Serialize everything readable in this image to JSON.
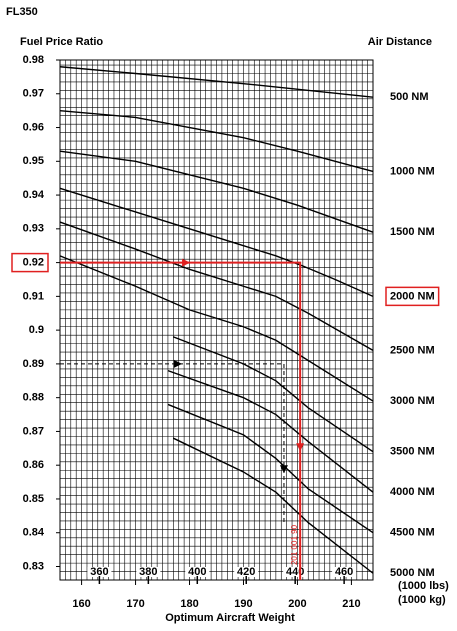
{
  "chart_data": {
    "type": "line",
    "title": "FL350",
    "y_label": "Fuel Price Ratio",
    "series_label": "Air Distance",
    "x_label": "Optimum Aircraft Weight",
    "x_unit_label": "(1000 lbs)",
    "x2_unit_label": "(1000 kg)",
    "xlim": [
      156,
      214
    ],
    "xticks": [
      160,
      170,
      180,
      190,
      200,
      210
    ],
    "x2lim": [
      343.9,
      471.8
    ],
    "x2ticks": [
      360,
      380,
      400,
      420,
      440,
      460
    ],
    "ylim": [
      0.826,
      0.98
    ],
    "yticks": [
      0.98,
      0.97,
      0.96,
      0.95,
      0.94,
      0.93,
      0.92,
      0.91,
      0.9,
      0.89,
      0.88,
      0.87,
      0.86,
      0.85,
      0.84,
      0.83
    ],
    "grid": true,
    "grid_x_step": 1,
    "grid_y_step": 0.0025,
    "color": "#000000",
    "highlight_color": "#e02020",
    "highlighted_ytick": 0.92,
    "highlighted_series": "2000 NM",
    "series": [
      {
        "name": "500 NM",
        "x": [
          156,
          170,
          190,
          214
        ],
        "values": [
          0.978,
          0.976,
          0.973,
          0.969
        ]
      },
      {
        "name": "1000 NM",
        "x": [
          156,
          170,
          180,
          190,
          200,
          214
        ],
        "values": [
          0.965,
          0.963,
          0.96,
          0.957,
          0.953,
          0.947
        ]
      },
      {
        "name": "1500 NM",
        "x": [
          156,
          170,
          180,
          190,
          200,
          214
        ],
        "values": [
          0.953,
          0.95,
          0.946,
          0.942,
          0.937,
          0.929
        ]
      },
      {
        "name": "2000 NM",
        "x": [
          156,
          170,
          180,
          190,
          196,
          201,
          207,
          214
        ],
        "values": [
          0.942,
          0.935,
          0.93,
          0.925,
          0.922,
          0.919,
          0.915,
          0.91
        ]
      },
      {
        "name": "2500 NM",
        "x": [
          156,
          170,
          180,
          190,
          196,
          202,
          214
        ],
        "values": [
          0.932,
          0.924,
          0.918,
          0.913,
          0.91,
          0.905,
          0.894
        ]
      },
      {
        "name": "3000 NM",
        "x": [
          156,
          170,
          180,
          190,
          196,
          202,
          214
        ],
        "values": [
          0.922,
          0.913,
          0.906,
          0.901,
          0.897,
          0.891,
          0.879
        ]
      },
      {
        "name": "3500 NM",
        "x": [
          177,
          190,
          196,
          202,
          214
        ],
        "values": [
          0.898,
          0.89,
          0.885,
          0.877,
          0.864
        ]
      },
      {
        "name": "4000 NM",
        "x": [
          176,
          190,
          196,
          202,
          214
        ],
        "values": [
          0.888,
          0.88,
          0.875,
          0.867,
          0.852
        ]
      },
      {
        "name": "4500 NM",
        "x": [
          176,
          190,
          196,
          202,
          214
        ],
        "values": [
          0.878,
          0.869,
          0.862,
          0.853,
          0.84
        ]
      },
      {
        "name": "5000 NM",
        "x": [
          177,
          190,
          196,
          202,
          214
        ],
        "values": [
          0.868,
          0.858,
          0.852,
          0.843,
          0.828
        ]
      }
    ],
    "annotations": [
      {
        "name": "example",
        "style": "solid",
        "color": "#e02020",
        "x": [
          156,
          200.5,
          200.5
        ],
        "values": [
          0.92,
          0.92,
          0.826
        ]
      },
      {
        "name": "example-2",
        "style": "dashed",
        "color": "#000000",
        "x": [
          156,
          197.5,
          197.5
        ],
        "values": [
          0.89,
          0.89,
          0.843
        ]
      }
    ],
    "figure_id": "201 001 90"
  }
}
